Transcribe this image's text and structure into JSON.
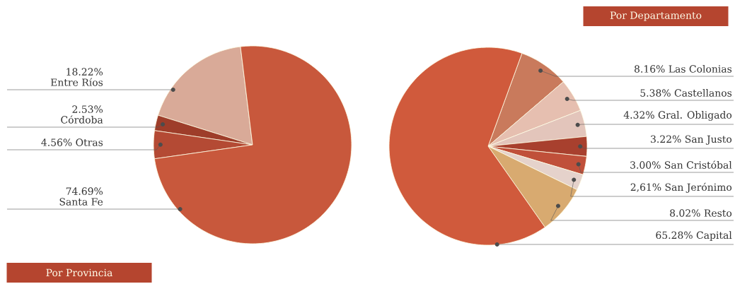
{
  "chart_data": [
    {
      "type": "pie",
      "title": "Por Provincia",
      "categories": [
        "Entre Ríos",
        "Córdoba",
        "Otras",
        "Santa Fe"
      ],
      "values": [
        18.22,
        2.53,
        4.56,
        74.69
      ],
      "value_labels": [
        "18.22%",
        "2.53%",
        "4.56%",
        "74.69%"
      ],
      "colors": [
        "#d9aa98",
        "#9e3d2a",
        "#b44a34",
        "#c8583c"
      ]
    },
    {
      "type": "pie",
      "title": "Por Departamento",
      "categories": [
        "Las Colonias",
        "Castellanos",
        "Gral. Obligado",
        "San Justo",
        "San Cristóbal",
        "San Jerónimo",
        "Resto",
        "Capital"
      ],
      "values": [
        8.16,
        5.38,
        4.32,
        3.22,
        3.0,
        2.61,
        8.02,
        65.28
      ],
      "value_labels": [
        "8.16%",
        "5.38%",
        "4.32%",
        "3.22%",
        "3.00%",
        "2,61%",
        "8.02%",
        "65.28%"
      ],
      "colors": [
        "#c97a5c",
        "#e6bfb0",
        "#e3c5bb",
        "#a8402e",
        "#c0503a",
        "#e5d2cb",
        "#d8aa70",
        "#d05a3c"
      ]
    }
  ]
}
